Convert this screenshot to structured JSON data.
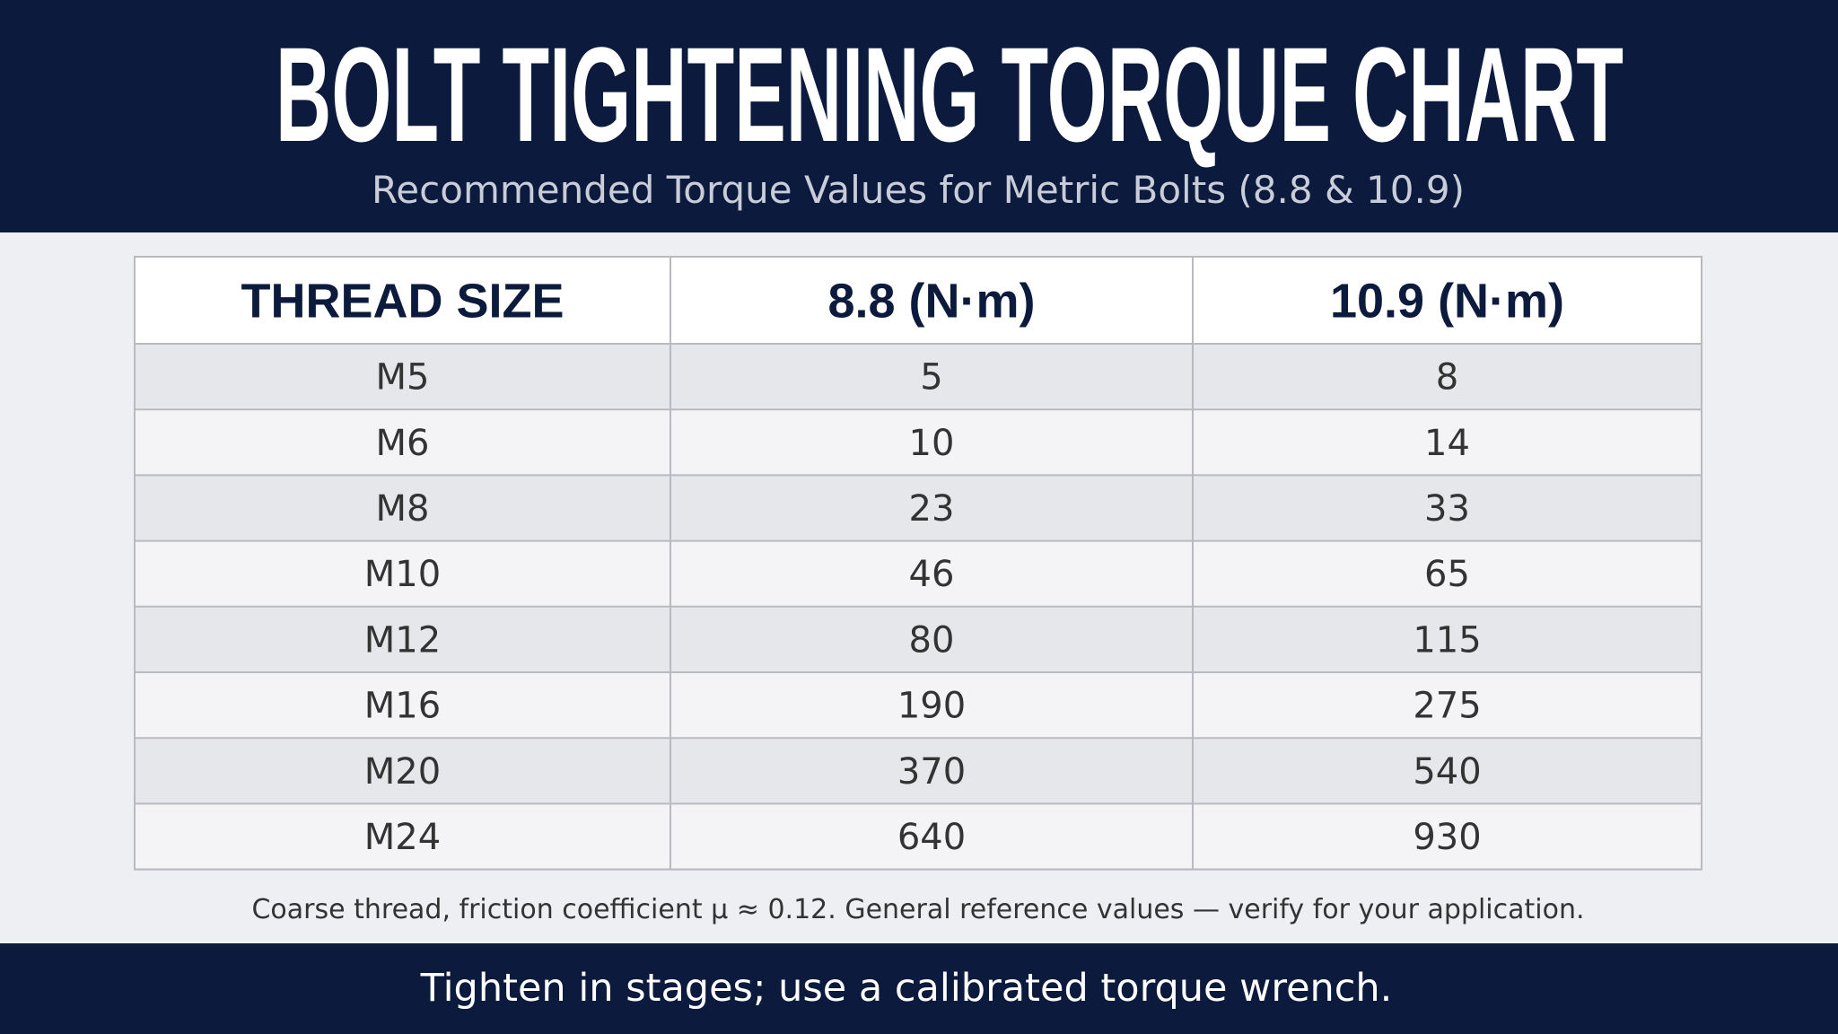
{
  "header": {
    "title": "BOLT TIGHTENING TORQUE CHART",
    "subtitle": "Recommended Torque Values for Metric Bolts (8.8 & 10.9)"
  },
  "table": {
    "columns": [
      "THREAD SIZE",
      "8.8 (N·m)",
      "10.9 (N·m)"
    ],
    "rows": [
      [
        "M5",
        5,
        8
      ],
      [
        "M6",
        10,
        14
      ],
      [
        "M8",
        23,
        33
      ],
      [
        "M10",
        46,
        65
      ],
      [
        "M12",
        80,
        115
      ],
      [
        "M16",
        190,
        275
      ],
      [
        "M20",
        370,
        540
      ],
      [
        "M24",
        640,
        930
      ]
    ]
  },
  "footnote": "Coarse thread, friction coefficient μ ≈ 0.12. General reference values — verify for your application.",
  "footer": {
    "text": "Tighten in stages; use a calibrated torque wrench."
  }
}
